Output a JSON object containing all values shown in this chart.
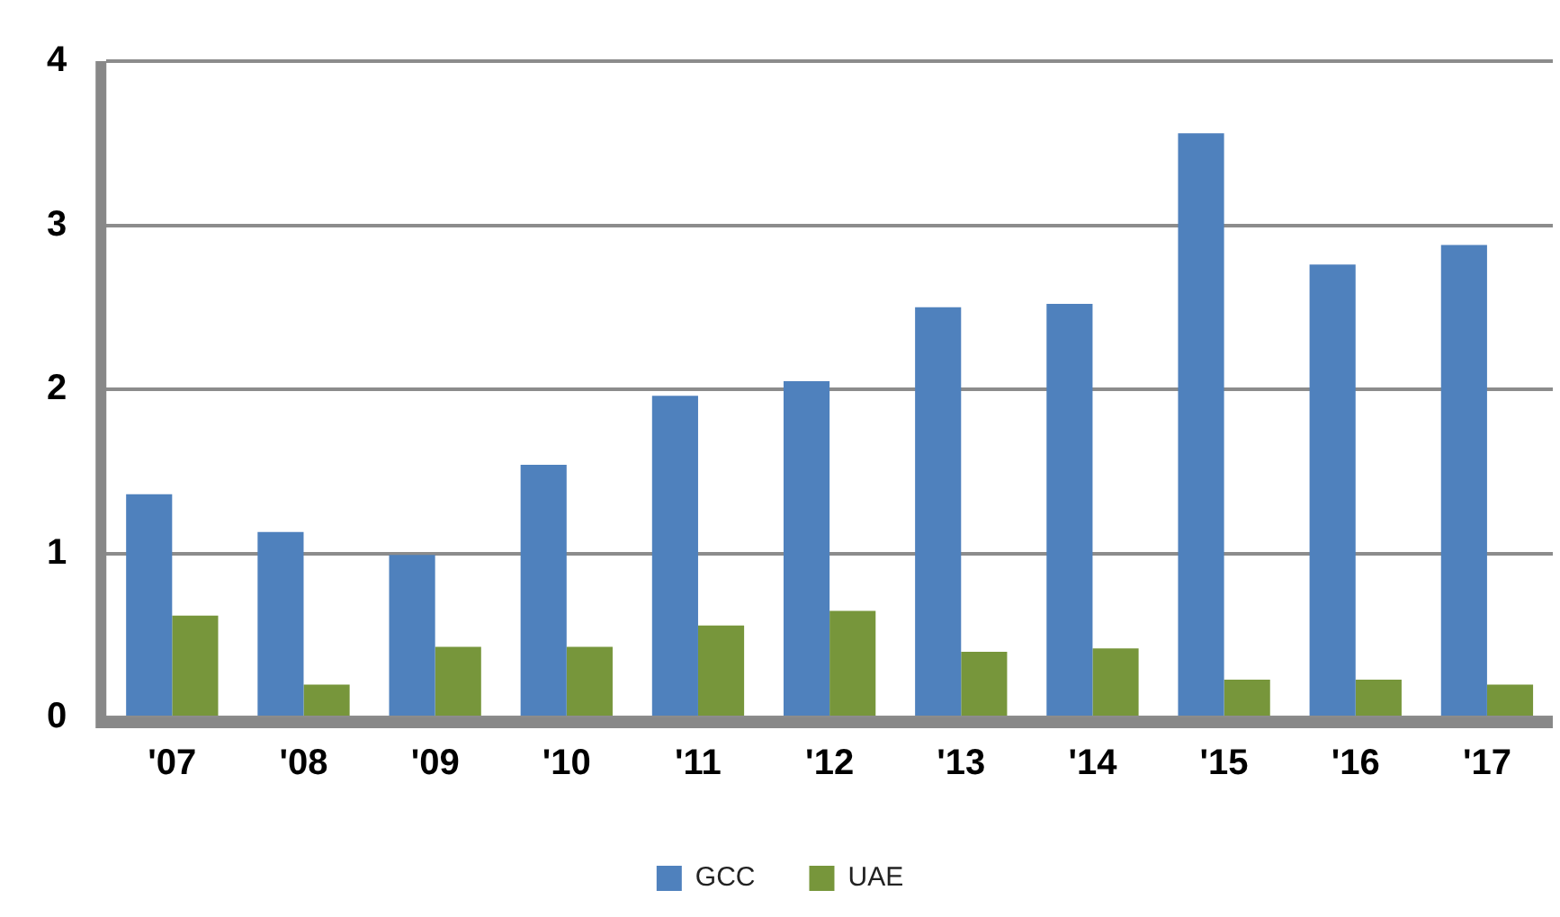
{
  "chart_data": {
    "type": "bar",
    "categories": [
      "'07",
      "'08",
      "'09",
      "'10",
      "'11",
      "'12",
      "'13",
      "'14",
      "'15",
      "'16",
      "'17"
    ],
    "series": [
      {
        "name": "GCC",
        "color": "#4f81bd",
        "values": [
          1.36,
          1.13,
          0.99,
          1.54,
          1.96,
          2.05,
          2.5,
          2.52,
          3.56,
          2.76,
          2.88
        ]
      },
      {
        "name": "UAE",
        "color": "#77963b",
        "values": [
          0.62,
          0.2,
          0.43,
          0.43,
          0.56,
          0.65,
          0.4,
          0.42,
          0.23,
          0.23,
          0.2
        ]
      }
    ],
    "ylim": [
      0,
      4
    ],
    "yticks": [
      0,
      1,
      2,
      3,
      4
    ],
    "grid": "y",
    "legend": "bottom"
  }
}
